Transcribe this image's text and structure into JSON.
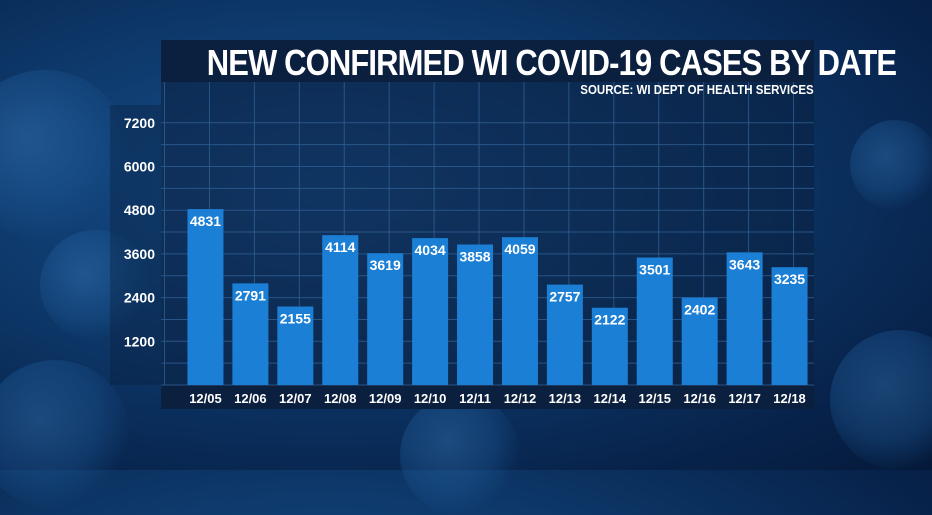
{
  "header": {
    "title": "NEW CONFIRMED WI COVID-19 CASES BY DATE",
    "source": "SOURCE: WI DEPT OF HEALTH SERVICES"
  },
  "colors": {
    "bar": "#1c7fd6",
    "panel": "#0b1f3e",
    "grid": "#2f5f93",
    "text": "#ffffff"
  },
  "chart_data": {
    "type": "bar",
    "title": "NEW CONFIRMED WI COVID-19 CASES BY DATE",
    "xlabel": "",
    "ylabel": "",
    "categories": [
      "12/05",
      "12/06",
      "12/07",
      "12/08",
      "12/09",
      "12/10",
      "12/11",
      "12/12",
      "12/13",
      "12/14",
      "12/15",
      "12/16",
      "12/17",
      "12/18"
    ],
    "values": [
      4831,
      2791,
      2155,
      4114,
      3619,
      4034,
      3858,
      4059,
      2757,
      2122,
      3501,
      2402,
      3643,
      3235
    ],
    "y_ticks": [
      "1200",
      "2400",
      "3600",
      "4800",
      "6000",
      "7200"
    ],
    "ylim": [
      0,
      8400
    ],
    "grid": true,
    "data_labels": true
  }
}
